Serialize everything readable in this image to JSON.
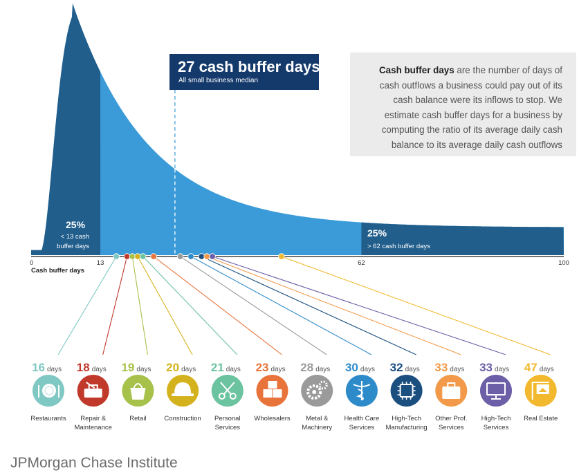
{
  "chart_data": {
    "type": "area",
    "title": "",
    "xlabel": "Cash buffer days",
    "ylabel": "",
    "xlim": [
      0,
      100
    ],
    "x_ticks": [
      "0",
      "13",
      "62",
      "100"
    ],
    "median": {
      "value": 27,
      "title": "27 cash buffer days",
      "subtitle": "All small business median"
    },
    "bottom_quartile": {
      "percent": "25%",
      "line1": "< 13 cash",
      "line2": "buffer days",
      "upper": 13
    },
    "top_quartile": {
      "percent": "25%",
      "label": "> 62 cash buffer days",
      "lower": 62
    },
    "industries": [
      {
        "value": 16,
        "name": [
          "Restaurants"
        ],
        "icon": "plate-icon",
        "color": "#7fc8c3"
      },
      {
        "value": 18,
        "name": [
          "Repair &",
          "Maintenance"
        ],
        "icon": "toolbox-icon",
        "color": "#c0392b"
      },
      {
        "value": 19,
        "name": [
          "Retail"
        ],
        "icon": "shopping-bag-icon",
        "color": "#a6c24a"
      },
      {
        "value": 20,
        "name": [
          "Construction"
        ],
        "icon": "hard-hat-icon",
        "color": "#d4b21e"
      },
      {
        "value": 21,
        "name": [
          "Personal",
          "Services"
        ],
        "icon": "scissors-icon",
        "color": "#6cc3a0"
      },
      {
        "value": 23,
        "name": [
          "Wholesalers"
        ],
        "icon": "boxes-icon",
        "color": "#e8743b"
      },
      {
        "value": 28,
        "name": [
          "Metal &",
          "Machinery"
        ],
        "icon": "gears-icon",
        "color": "#9a9a9a"
      },
      {
        "value": 30,
        "name": [
          "Health Care",
          "Services"
        ],
        "icon": "caduceus-icon",
        "color": "#2e8bc9"
      },
      {
        "value": 32,
        "name": [
          "High-Tech",
          "Manufacturing"
        ],
        "icon": "chip-icon",
        "color": "#1b4f80"
      },
      {
        "value": 33,
        "name": [
          "Other Prof.",
          "Services"
        ],
        "icon": "briefcase-icon",
        "color": "#f29a4a"
      },
      {
        "value": 33,
        "name": [
          "High-Tech",
          "Services"
        ],
        "icon": "monitor-icon",
        "color": "#6c5fa7"
      },
      {
        "value": 47,
        "name": [
          "Real Estate"
        ],
        "icon": "house-sign-icon",
        "color": "#f2b82e"
      }
    ],
    "unit": "days"
  },
  "info": {
    "bold": "Cash buffer days",
    "text": " are the number of days of cash outflows a business could pay out of its cash balance were its inflows to stop. We estimate cash buffer days for a business by computing the ratio of its average daily cash balance to its average daily cash outflows"
  },
  "footer": "JPMorgan Chase Institute"
}
